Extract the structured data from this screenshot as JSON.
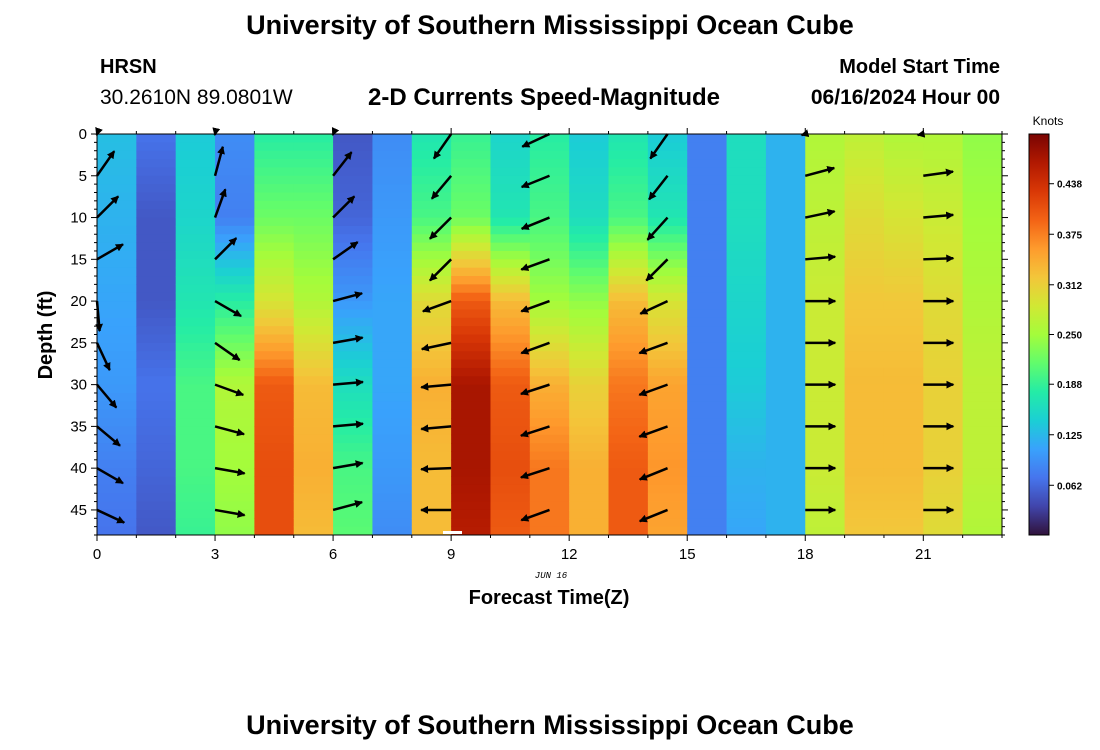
{
  "header": {
    "title": "University of Southern Mississippi Ocean Cube",
    "station": "HRSN",
    "coords": "30.2610N  89.0801W",
    "chart_title": "2-D Currents Speed-Magnitude",
    "model_start_label": "Model Start Time",
    "model_start_value": "06/16/2024 Hour 00"
  },
  "footer": {
    "title": "University of Southern Mississippi Ocean Cube"
  },
  "colors": {
    "colormap": [
      "#30123b",
      "#4145ab",
      "#4675ed",
      "#39a2fc",
      "#1bcfd4",
      "#24eca6",
      "#61fc6c",
      "#a4fc3b",
      "#d1e834",
      "#f3c63a",
      "#fe9b2d",
      "#f36315",
      "#d93806",
      "#b11901",
      "#7a0402"
    ],
    "arrow": "#000000"
  },
  "chart_data": {
    "type": "heatmap",
    "xlabel": "Forecast Time(Z)",
    "ylabel": "Depth (ft)",
    "date_label": "JUN 16",
    "x_ticks": [
      0,
      3,
      6,
      9,
      12,
      15,
      18,
      21
    ],
    "y_ticks": [
      0,
      5,
      10,
      15,
      20,
      25,
      30,
      35,
      40,
      45
    ],
    "xlim": [
      0,
      23
    ],
    "ylim": [
      0,
      48
    ],
    "colorbar": {
      "title": "Knots",
      "ticks": [
        0.062,
        0.125,
        0.188,
        0.25,
        0.312,
        0.375,
        0.438
      ],
      "range": [
        0.0,
        0.5
      ]
    },
    "hours": [
      0,
      1,
      2,
      3,
      4,
      5,
      6,
      7,
      8,
      9,
      10,
      11,
      12,
      13,
      14,
      15,
      16,
      17,
      18,
      19,
      20,
      21,
      22,
      23
    ],
    "depth_levels": [
      0,
      10,
      20,
      30,
      40,
      48
    ],
    "speed_knots": [
      [
        0.13,
        0.07,
        0.14,
        0.09,
        0.18,
        0.18,
        0.05,
        0.09,
        0.17,
        0.19,
        0.15,
        0.18,
        0.14,
        0.17,
        0.14,
        0.08,
        0.16,
        0.12,
        0.26,
        0.27,
        0.26,
        0.26,
        0.24,
        0.27
      ],
      [
        0.12,
        0.05,
        0.15,
        0.08,
        0.22,
        0.22,
        0.06,
        0.1,
        0.2,
        0.22,
        0.17,
        0.2,
        0.16,
        0.2,
        0.17,
        0.08,
        0.16,
        0.12,
        0.27,
        0.3,
        0.29,
        0.28,
        0.25,
        0.29
      ],
      [
        0.11,
        0.05,
        0.17,
        0.18,
        0.29,
        0.26,
        0.1,
        0.11,
        0.3,
        0.4,
        0.33,
        0.25,
        0.24,
        0.33,
        0.29,
        0.08,
        0.15,
        0.12,
        0.28,
        0.32,
        0.32,
        0.3,
        0.26,
        0.31
      ],
      [
        0.1,
        0.07,
        0.2,
        0.26,
        0.4,
        0.33,
        0.16,
        0.11,
        0.34,
        0.47,
        0.4,
        0.34,
        0.31,
        0.38,
        0.35,
        0.08,
        0.14,
        0.12,
        0.28,
        0.33,
        0.33,
        0.31,
        0.27,
        0.32
      ],
      [
        0.08,
        0.06,
        0.2,
        0.25,
        0.41,
        0.34,
        0.2,
        0.1,
        0.33,
        0.47,
        0.41,
        0.38,
        0.34,
        0.4,
        0.36,
        0.08,
        0.12,
        0.12,
        0.28,
        0.33,
        0.33,
        0.31,
        0.27,
        0.32
      ],
      [
        0.07,
        0.05,
        0.19,
        0.24,
        0.41,
        0.33,
        0.21,
        0.09,
        0.33,
        0.46,
        0.4,
        0.38,
        0.34,
        0.4,
        0.35,
        0.08,
        0.11,
        0.12,
        0.27,
        0.32,
        0.32,
        0.3,
        0.26,
        0.31
      ]
    ],
    "vectors": {
      "depths": [
        0,
        5,
        10,
        15,
        20,
        25,
        30,
        35,
        40,
        45
      ],
      "hours": [
        0,
        3,
        6,
        9,
        11.5,
        14.5,
        18,
        21
      ],
      "direction_deg_from_north": [
        [
          20,
          12,
          25,
          215,
          245,
          215,
          75,
          80
        ],
        [
          35,
          15,
          38,
          220,
          248,
          218,
          75,
          82
        ],
        [
          45,
          20,
          45,
          225,
          248,
          222,
          78,
          85
        ],
        [
          60,
          45,
          55,
          225,
          250,
          225,
          85,
          88
        ],
        [
          175,
          120,
          75,
          250,
          250,
          245,
          90,
          90
        ],
        [
          155,
          125,
          80,
          258,
          250,
          250,
          90,
          90
        ],
        [
          140,
          110,
          85,
          265,
          252,
          250,
          90,
          90
        ],
        [
          130,
          105,
          85,
          265,
          252,
          250,
          90,
          90
        ],
        [
          120,
          100,
          80,
          268,
          252,
          248,
          90,
          90
        ],
        [
          115,
          100,
          75,
          270,
          250,
          248,
          90,
          90
        ]
      ]
    }
  }
}
